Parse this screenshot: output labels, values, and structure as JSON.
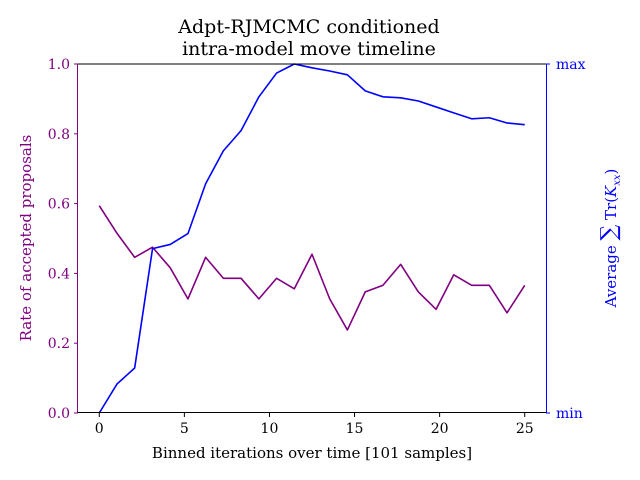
{
  "chart_data": {
    "type": "line",
    "title_lines": [
      "Adpt-RJMCMC conditioned",
      "intra-model move timeline"
    ],
    "xlabel": "Binned iterations over time [101 samples]",
    "ylabel_left": "Rate of accepted proposals",
    "ylabel_right_prefix": "Average ",
    "ylabel_right_sum": "∑",
    "ylabel_right_tr": " Tr(",
    "ylabel_right_k": "K",
    "ylabel_right_sub": "xx",
    "ylabel_right_suffix": ")",
    "xlim": [
      -1.25,
      26.25
    ],
    "ylim_left": [
      0,
      1
    ],
    "ylim_right": [
      0,
      1
    ],
    "x_ticks": [
      0,
      5,
      10,
      15,
      20,
      25
    ],
    "x_tick_labels": [
      "0",
      "5",
      "10",
      "15",
      "20",
      "25"
    ],
    "y_ticks_left": [
      0,
      0.2,
      0.4,
      0.6,
      0.8,
      1.0
    ],
    "y_tick_labels_left": [
      "0.0",
      "0.2",
      "0.4",
      "0.6",
      "0.8",
      "1.0"
    ],
    "y_ticks_right": [
      0,
      1
    ],
    "y_tick_labels_right": [
      "min",
      "max"
    ],
    "colors": {
      "left": "#800080",
      "right": "#0000ff"
    },
    "series": [
      {
        "axis": "left",
        "color": "#800080",
        "x": [
          0,
          1.04,
          2.08,
          3.13,
          4.17,
          5.21,
          6.25,
          7.29,
          8.33,
          9.38,
          10.42,
          11.46,
          12.5,
          13.54,
          14.58,
          15.63,
          16.67,
          17.71,
          18.75,
          19.79,
          20.83,
          21.88,
          22.92,
          23.96,
          25
        ],
        "values": [
          0.594,
          0.515,
          0.446,
          0.475,
          0.416,
          0.327,
          0.446,
          0.386,
          0.386,
          0.327,
          0.386,
          0.356,
          0.455,
          0.327,
          0.238,
          0.347,
          0.366,
          0.426,
          0.347,
          0.297,
          0.396,
          0.366,
          0.366,
          0.287,
          0.366
        ]
      },
      {
        "axis": "right",
        "color": "#0000ff",
        "x": [
          0,
          1.04,
          2.08,
          3.13,
          4.17,
          5.21,
          6.25,
          7.29,
          8.33,
          9.38,
          10.42,
          11.46,
          12.5,
          13.54,
          14.58,
          15.63,
          16.67,
          17.71,
          18.75,
          19.79,
          20.83,
          21.88,
          22.92,
          23.96,
          25
        ],
        "values": [
          0.0,
          0.083,
          0.129,
          0.471,
          0.483,
          0.514,
          0.657,
          0.751,
          0.809,
          0.906,
          0.974,
          1.0,
          0.989,
          0.98,
          0.969,
          0.923,
          0.906,
          0.903,
          0.894,
          0.877,
          0.86,
          0.843,
          0.846,
          0.831,
          0.826
        ]
      }
    ]
  }
}
